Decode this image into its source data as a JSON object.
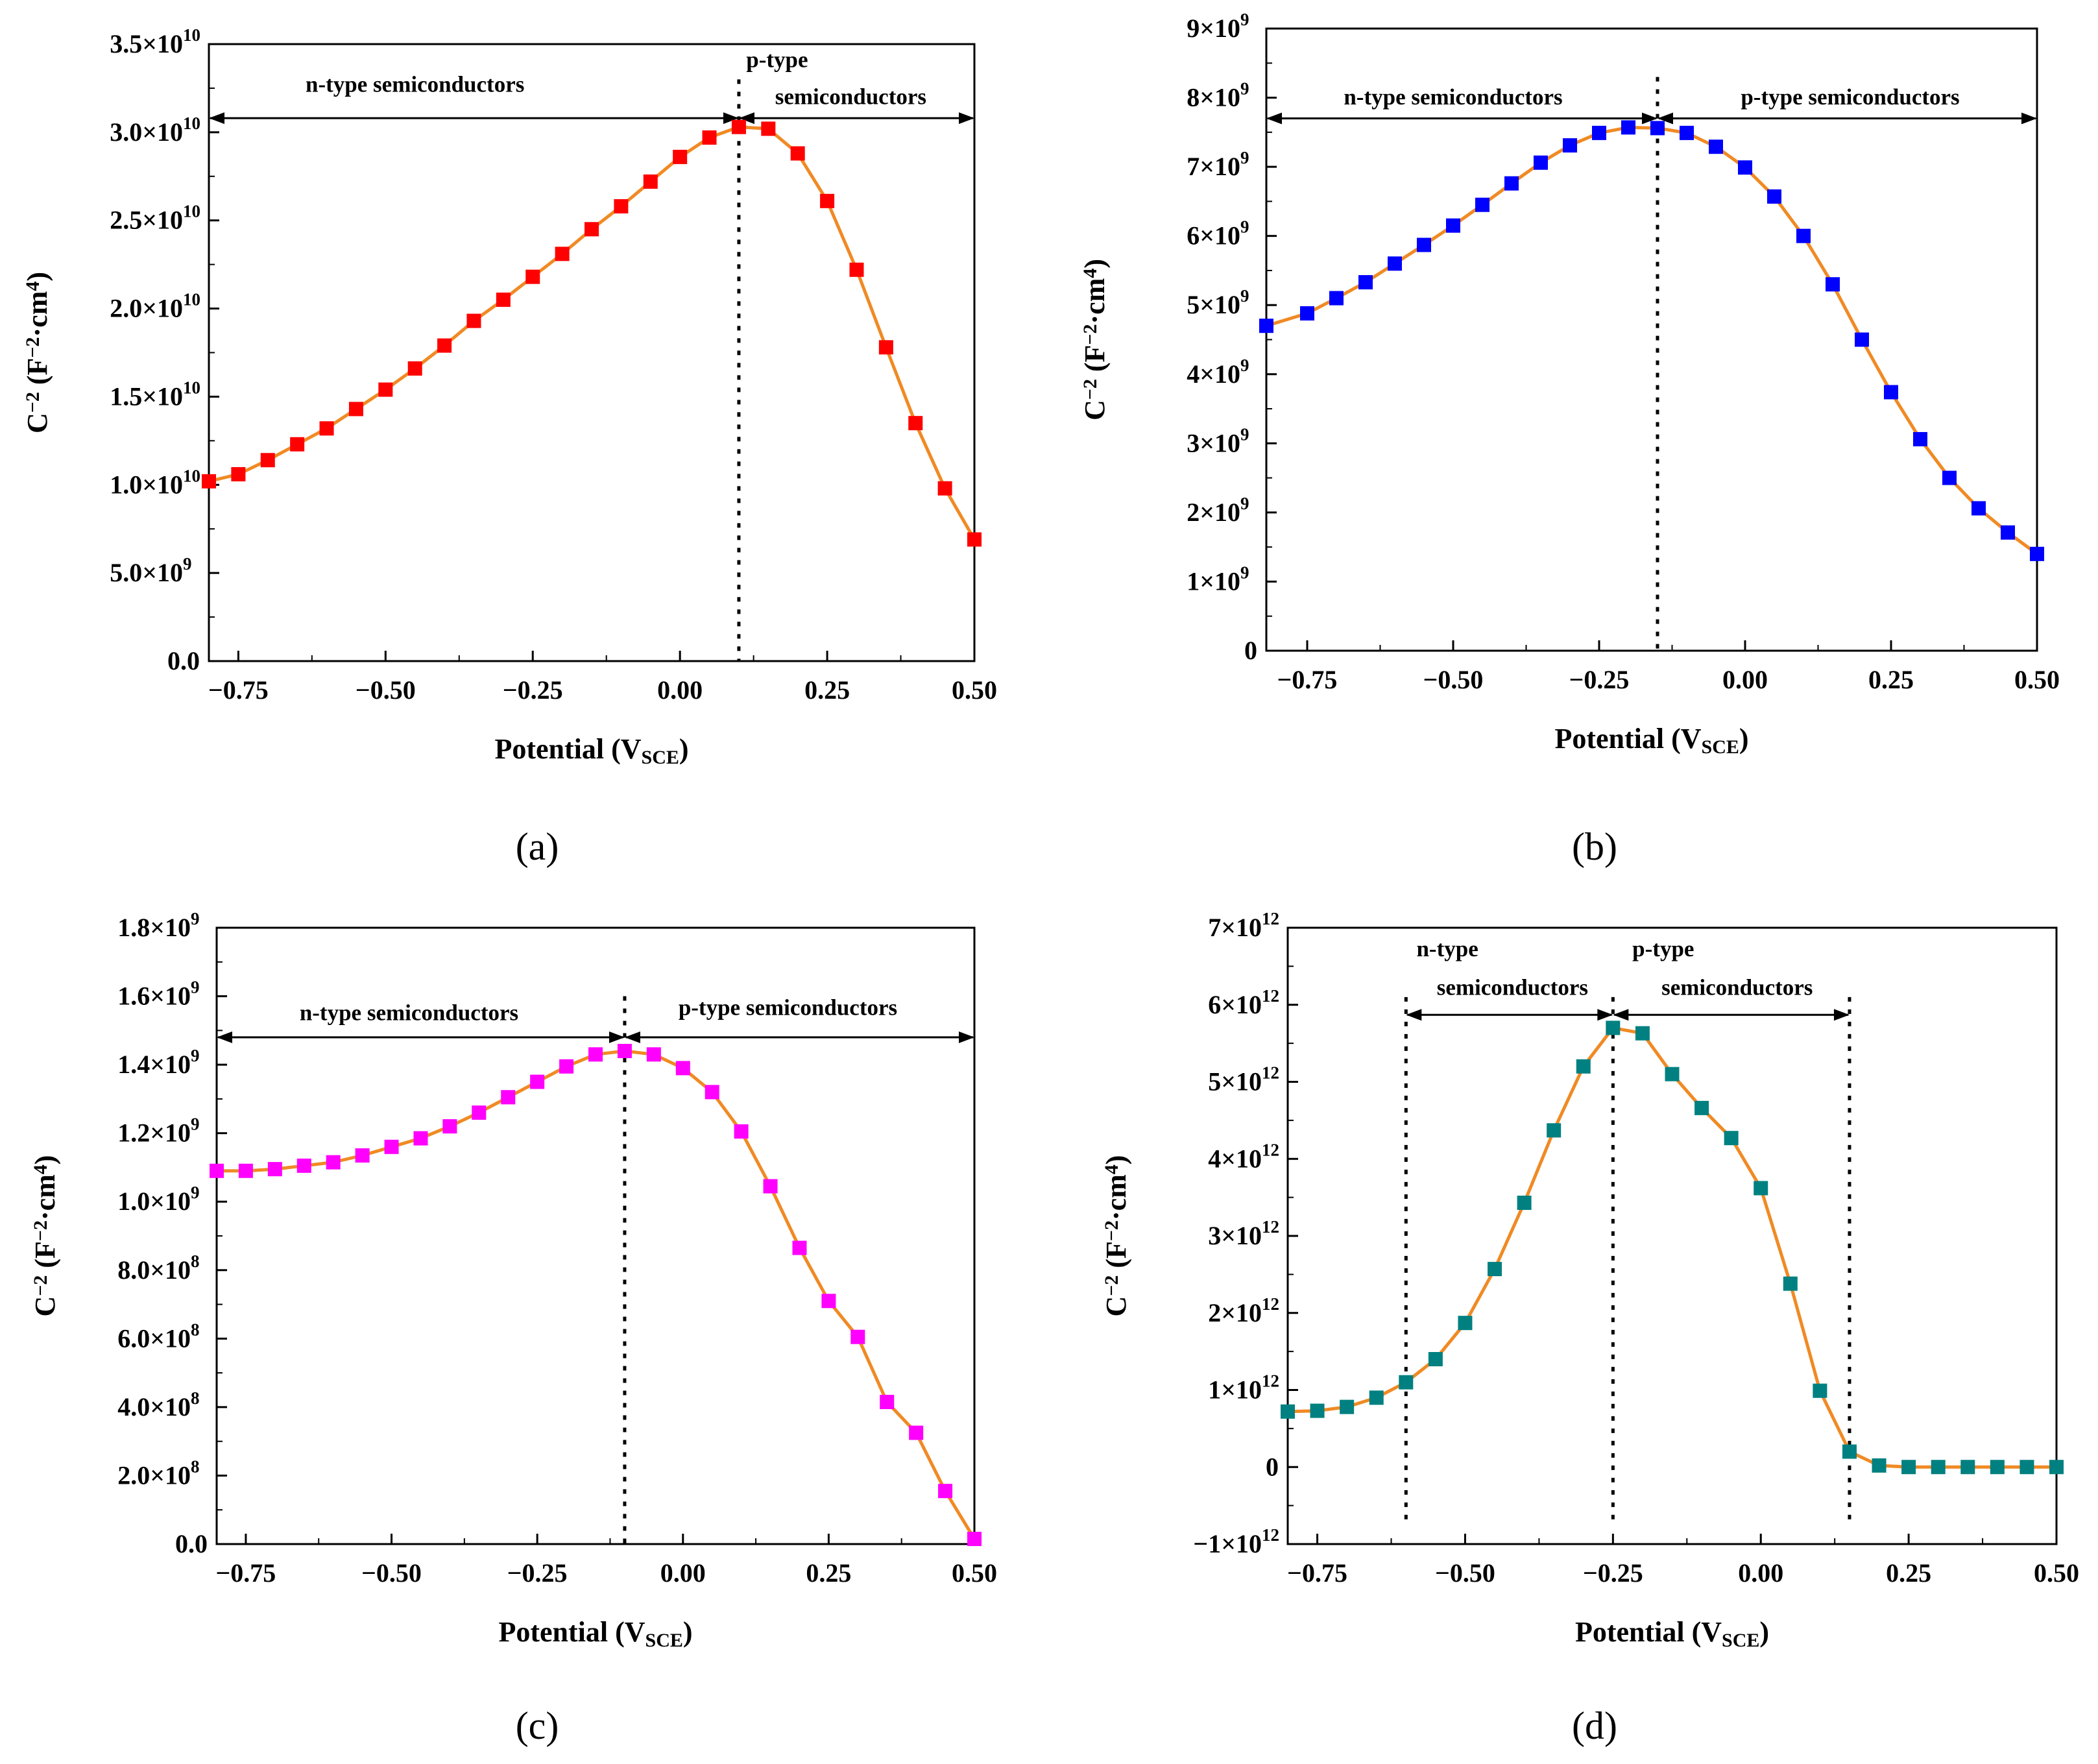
{
  "figure": {
    "panels": [
      "a",
      "b",
      "c",
      "d"
    ]
  },
  "colors": {
    "line": "#f08a24",
    "panel_a_marker": "#ff0000",
    "panel_b_marker": "#0000ff",
    "panel_c_marker": "#ff00ff",
    "panel_d_marker": "#008080"
  },
  "chart_data": [
    {
      "id": "a",
      "panel_label": "(a)",
      "type": "line",
      "marker_color": "#ff0000",
      "xlabel": "Potential (V",
      "xlabel_sub": "SCE",
      "xlabel_close": ")",
      "ylabel": "C",
      "ylabel_sup": "−2",
      "ylabel_unit": " (F",
      "ylabel_unit_sup": "−2",
      "ylabel_unit_mid": "·cm",
      "ylabel_unit_sup2": "4",
      "ylabel_close": ")",
      "xlim": [
        -0.8,
        0.5
      ],
      "ylim": [
        0,
        35000000000
      ],
      "xticks": [
        -0.75,
        -0.5,
        -0.25,
        0.0,
        0.25,
        0.5
      ],
      "xtick_labels": [
        "−0.75",
        "−0.50",
        "−0.25",
        "0.00",
        "0.25",
        "0.50"
      ],
      "yticks": [
        0,
        5000000000,
        10000000000,
        15000000000,
        20000000000,
        25000000000,
        30000000000,
        35000000000
      ],
      "ytick_labels": [
        {
          "m": "0.0",
          "e": ""
        },
        {
          "m": "5.0×10",
          "e": "9"
        },
        {
          "m": "1.0×10",
          "e": "10"
        },
        {
          "m": "1.5×10",
          "e": "10"
        },
        {
          "m": "2.0×10",
          "e": "10"
        },
        {
          "m": "2.5×10",
          "e": "10"
        },
        {
          "m": "3.0×10",
          "e": "10"
        },
        {
          "m": "3.5×10",
          "e": "10"
        }
      ],
      "x": [
        -0.8,
        -0.75,
        -0.7,
        -0.65,
        -0.6,
        -0.55,
        -0.5,
        -0.45,
        -0.4,
        -0.35,
        -0.3,
        -0.25,
        -0.2,
        -0.15,
        -0.1,
        -0.05,
        0.0,
        0.05,
        0.1,
        0.15,
        0.2,
        0.25,
        0.3,
        0.35,
        0.4,
        0.45,
        0.5
      ],
      "y": [
        10200000000,
        10600000000,
        11400000000,
        12300000000,
        13200000000,
        14300000000,
        15400000000,
        16600000000,
        17900000000,
        19300000000,
        20500000000,
        21800000000,
        23100000000,
        24500000000,
        25800000000,
        27200000000,
        28600000000,
        29700000000,
        30300000000,
        30200000000,
        28800000000,
        26100000000,
        22200000000,
        17800000000,
        13500000000,
        9800000000,
        6900000000
      ],
      "vlines": [
        0.1
      ],
      "vline_y_range": [
        0,
        33000000000
      ],
      "arrows": [
        {
          "from": -0.8,
          "to": 0.1,
          "y": 30800000000,
          "label": "n-type semiconductors",
          "label_x": -0.45,
          "label_y": 32300000000
        },
        {
          "from": 0.1,
          "to": 0.5,
          "y": 30800000000,
          "label": "p-type",
          "label_x": 0.165,
          "label_y": 33700000000,
          "label2": "semiconductors",
          "label2_x": 0.29,
          "label2_y": 31600000000
        }
      ]
    },
    {
      "id": "b",
      "panel_label": "(b)",
      "type": "line",
      "marker_color": "#0000ff",
      "xlabel": "Potential (V",
      "xlabel_sub": "SCE",
      "xlabel_close": ")",
      "ylabel": "C",
      "ylabel_sup": "−2",
      "ylabel_unit": " (F",
      "ylabel_unit_sup": "−2",
      "ylabel_unit_mid": "·cm",
      "ylabel_unit_sup2": "4",
      "ylabel_close": ")",
      "xlim": [
        -0.82,
        0.5
      ],
      "ylim": [
        0,
        9000000000
      ],
      "xticks": [
        -0.75,
        -0.5,
        -0.25,
        0.0,
        0.25,
        0.5
      ],
      "xtick_labels": [
        "−0.75",
        "−0.50",
        "−0.25",
        "0.00",
        "0.25",
        "0.50"
      ],
      "yticks": [
        0,
        1000000000,
        2000000000,
        3000000000,
        4000000000,
        5000000000,
        6000000000,
        7000000000,
        8000000000,
        9000000000
      ],
      "ytick_labels": [
        {
          "m": "0",
          "e": ""
        },
        {
          "m": "1×10",
          "e": "9"
        },
        {
          "m": "2×10",
          "e": "9"
        },
        {
          "m": "3×10",
          "e": "9"
        },
        {
          "m": "4×10",
          "e": "9"
        },
        {
          "m": "5×10",
          "e": "9"
        },
        {
          "m": "6×10",
          "e": "9"
        },
        {
          "m": "7×10",
          "e": "9"
        },
        {
          "m": "8×10",
          "e": "9"
        },
        {
          "m": "9×10",
          "e": "9"
        }
      ],
      "x": [
        -0.82,
        -0.75,
        -0.7,
        -0.65,
        -0.6,
        -0.55,
        -0.5,
        -0.45,
        -0.4,
        -0.35,
        -0.3,
        -0.25,
        -0.2,
        -0.15,
        -0.1,
        -0.05,
        0.0,
        0.05,
        0.1,
        0.15,
        0.2,
        0.25,
        0.3,
        0.35,
        0.4,
        0.45,
        0.5
      ],
      "y": [
        4700000000,
        4880000000,
        5100000000,
        5330000000,
        5600000000,
        5870000000,
        6150000000,
        6450000000,
        6760000000,
        7060000000,
        7310000000,
        7490000000,
        7570000000,
        7560000000,
        7490000000,
        7290000000,
        6990000000,
        6570000000,
        6000000000,
        5300000000,
        4500000000,
        3740000000,
        3060000000,
        2500000000,
        2060000000,
        1710000000,
        1400000000
      ],
      "vlines": [
        -0.15
      ],
      "vline_y_range": [
        0,
        8300000000
      ],
      "arrows": [
        {
          "from": -0.82,
          "to": -0.15,
          "y": 7700000000,
          "label": "n-type semiconductors",
          "label_x": -0.5,
          "label_y": 7900000000
        },
        {
          "from": -0.15,
          "to": 0.5,
          "y": 7700000000,
          "label": "p-type semiconductors",
          "label_x": 0.18,
          "label_y": 7900000000
        }
      ]
    },
    {
      "id": "c",
      "panel_label": "(c)",
      "type": "line",
      "marker_color": "#ff00ff",
      "xlabel": "Potential (V",
      "xlabel_sub": "SCE",
      "xlabel_close": ")",
      "ylabel": "C",
      "ylabel_sup": "−2",
      "ylabel_unit": " (F",
      "ylabel_unit_sup": "−2",
      "ylabel_unit_mid": "·cm",
      "ylabel_unit_sup2": "4",
      "ylabel_close": ")",
      "xlim": [
        -0.8,
        0.5
      ],
      "ylim": [
        0,
        1800000000
      ],
      "xticks": [
        -0.75,
        -0.5,
        -0.25,
        0.0,
        0.25,
        0.5
      ],
      "xtick_labels": [
        "−0.75",
        "−0.50",
        "−0.25",
        "0.00",
        "0.25",
        "0.50"
      ],
      "yticks": [
        0,
        200000000,
        400000000,
        600000000,
        800000000,
        1000000000,
        1200000000,
        1400000000,
        1600000000,
        1800000000
      ],
      "ytick_labels": [
        {
          "m": "0.0",
          "e": ""
        },
        {
          "m": "2.0×10",
          "e": "8"
        },
        {
          "m": "4.0×10",
          "e": "8"
        },
        {
          "m": "6.0×10",
          "e": "8"
        },
        {
          "m": "8.0×10",
          "e": "8"
        },
        {
          "m": "1.0×10",
          "e": "9"
        },
        {
          "m": "1.2×10",
          "e": "9"
        },
        {
          "m": "1.4×10",
          "e": "9"
        },
        {
          "m": "1.6×10",
          "e": "9"
        },
        {
          "m": "1.8×10",
          "e": "9"
        }
      ],
      "x": [
        -0.8,
        -0.75,
        -0.7,
        -0.65,
        -0.6,
        -0.55,
        -0.5,
        -0.45,
        -0.4,
        -0.35,
        -0.3,
        -0.25,
        -0.2,
        -0.15,
        -0.1,
        -0.05,
        0.0,
        0.05,
        0.1,
        0.15,
        0.2,
        0.25,
        0.3,
        0.35,
        0.4,
        0.45,
        0.5
      ],
      "y": [
        1090000000,
        1090000000,
        1095000000,
        1105000000,
        1115000000,
        1135000000,
        1160000000,
        1185000000,
        1220000000,
        1260000000,
        1305000000,
        1350000000,
        1395000000,
        1430000000,
        1440000000,
        1430000000,
        1390000000,
        1320000000,
        1205000000,
        1045000000,
        865000000,
        710000000,
        605000000,
        415000000,
        325000000,
        155000000,
        15000000
      ],
      "vlines": [
        -0.1
      ],
      "vline_y_range": [
        0,
        1600000000
      ],
      "arrows": [
        {
          "from": -0.8,
          "to": -0.1,
          "y": 1480000000,
          "label": "n-type semiconductors",
          "label_x": -0.47,
          "label_y": 1530000000
        },
        {
          "from": -0.1,
          "to": 0.5,
          "y": 1480000000,
          "label": "p-type semiconductors",
          "label_x": 0.18,
          "label_y": 1545000000
        }
      ]
    },
    {
      "id": "d",
      "panel_label": "(d)",
      "type": "line",
      "marker_color": "#008080",
      "xlabel": "Potential (V",
      "xlabel_sub": "SCE",
      "xlabel_close": ")",
      "ylabel": "C",
      "ylabel_sup": "−2",
      "ylabel_unit": " (F",
      "ylabel_unit_sup": "−2",
      "ylabel_unit_mid": "·cm",
      "ylabel_unit_sup2": "4",
      "ylabel_close": ")",
      "xlim": [
        -0.8,
        0.5
      ],
      "ylim": [
        -1000000000000,
        7000000000000
      ],
      "xticks": [
        -0.75,
        -0.5,
        -0.25,
        0.0,
        0.25,
        0.5
      ],
      "xtick_labels": [
        "−0.75",
        "−0.50",
        "−0.25",
        "0.00",
        "0.25",
        "0.50"
      ],
      "yticks": [
        -1000000000000,
        0,
        1000000000000,
        2000000000000,
        3000000000000,
        4000000000000,
        5000000000000,
        6000000000000,
        7000000000000
      ],
      "ytick_labels": [
        {
          "m": "−1×10",
          "e": "12"
        },
        {
          "m": "0",
          "e": ""
        },
        {
          "m": "1×10",
          "e": "12"
        },
        {
          "m": "2×10",
          "e": "12"
        },
        {
          "m": "3×10",
          "e": "12"
        },
        {
          "m": "4×10",
          "e": "12"
        },
        {
          "m": "5×10",
          "e": "12"
        },
        {
          "m": "6×10",
          "e": "12"
        },
        {
          "m": "7×10",
          "e": "12"
        }
      ],
      "x": [
        -0.8,
        -0.75,
        -0.7,
        -0.65,
        -0.6,
        -0.55,
        -0.5,
        -0.45,
        -0.4,
        -0.35,
        -0.3,
        -0.25,
        -0.2,
        -0.15,
        -0.1,
        -0.05,
        0.0,
        0.05,
        0.1,
        0.15,
        0.2,
        0.25,
        0.3,
        0.35,
        0.4,
        0.45,
        0.5
      ],
      "y": [
        720000000000,
        730000000000,
        780000000000,
        900000000000,
        1100000000000,
        1400000000000,
        1870000000000,
        2570000000000,
        3430000000000,
        4370000000000,
        5200000000000,
        5700000000000,
        5630000000000,
        5100000000000,
        4660000000000,
        4270000000000,
        3620000000000,
        2380000000000,
        990000000000,
        200000000000,
        20000000000,
        0,
        0,
        0,
        0,
        0,
        0
      ],
      "vlines": [
        -0.6,
        -0.25,
        0.15
      ],
      "vline_y_range": [
        -700000000000,
        6100000000000
      ],
      "arrows": [
        {
          "from": -0.6,
          "to": -0.25,
          "y": 5870000000000,
          "label": "n-type",
          "label_x": -0.53,
          "label_y": 6630000000000,
          "label2": "semiconductors",
          "label2_x": -0.42,
          "label2_y": 6130000000000
        },
        {
          "from": -0.25,
          "to": 0.15,
          "y": 5870000000000,
          "label": "p-type",
          "label_x": -0.165,
          "label_y": 6630000000000,
          "label2": "semiconductors",
          "label2_x": -0.04,
          "label2_y": 6130000000000
        }
      ]
    }
  ]
}
